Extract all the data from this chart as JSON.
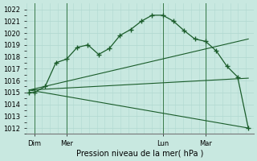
{
  "bg_color": "#c8e8e0",
  "grid_color": "#b0d8d0",
  "line_color": "#1a5c2a",
  "ylim": [
    1011.5,
    1022.5
  ],
  "yticks": [
    1012,
    1013,
    1014,
    1015,
    1016,
    1017,
    1018,
    1019,
    1020,
    1021,
    1022
  ],
  "xlabel": "Pression niveau de la mer( hPa )",
  "xtick_labels": [
    "Dim",
    "Mer",
    "Lun",
    "Mar"
  ],
  "xtick_positions": [
    2,
    14,
    50,
    66
  ],
  "vline_positions": [
    2,
    14,
    50,
    66
  ],
  "main_line_x": [
    0,
    2,
    6,
    10,
    14,
    18,
    22,
    26,
    30,
    34,
    38,
    42,
    46,
    50,
    54,
    58,
    62,
    66,
    70,
    74,
    78,
    82
  ],
  "main_line_y": [
    1015.0,
    1015.0,
    1015.5,
    1017.5,
    1017.8,
    1018.8,
    1019.0,
    1018.2,
    1018.7,
    1019.8,
    1020.3,
    1021.0,
    1021.5,
    1021.5,
    1021.0,
    1020.2,
    1019.5,
    1019.3,
    1018.5,
    1017.2,
    1016.3,
    1012.0
  ],
  "upper_trend_x": [
    0,
    82
  ],
  "upper_trend_y": [
    1015.2,
    1019.5
  ],
  "lower_trend_x": [
    0,
    82
  ],
  "lower_trend_y": [
    1015.2,
    1012.0
  ],
  "mid_trend_x": [
    0,
    82
  ],
  "mid_trend_y": [
    1015.2,
    1016.2
  ],
  "xlim": [
    -1,
    84
  ],
  "xlabel_fontsize": 7,
  "tick_fontsize": 6,
  "vline_color": "#3a7a4a"
}
